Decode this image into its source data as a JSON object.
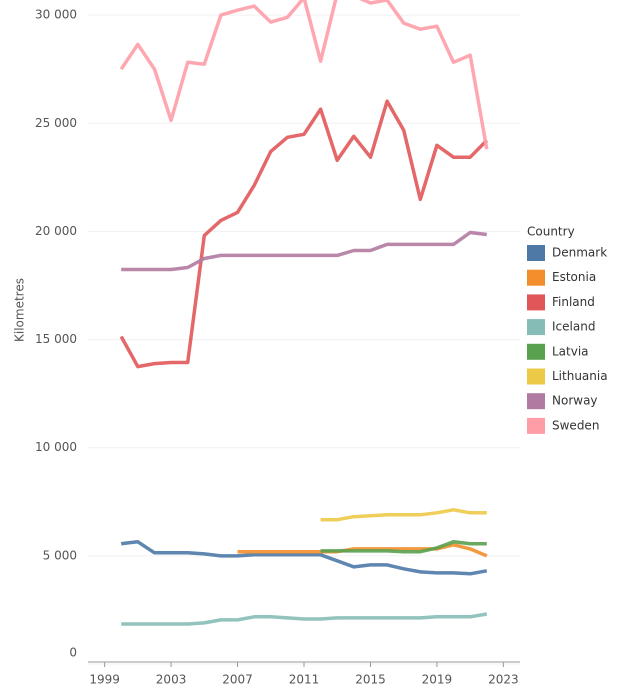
{
  "chart_data": {
    "type": "line",
    "y_label": "Kilometres",
    "legend_title": "Country",
    "legend": "right",
    "grid": true,
    "x": [
      2000,
      2001,
      2002,
      2003,
      2004,
      2005,
      2006,
      2007,
      2008,
      2009,
      2010,
      2011,
      2012,
      2013,
      2014,
      2015,
      2016,
      2017,
      2018,
      2019,
      2020,
      2021,
      2022
    ],
    "xlim": [
      1998,
      2024
    ],
    "xticks": [
      1999,
      2003,
      2007,
      2011,
      2015,
      2019,
      2023
    ],
    "ylim": [
      0,
      30700
    ],
    "yticks": [
      0,
      {
        "value": 5000,
        "label": "5 000"
      },
      {
        "value": 10000,
        "label": "10 000"
      },
      {
        "value": 15000,
        "label": "15 000"
      },
      {
        "value": 20000,
        "label": "20 000"
      },
      {
        "value": 25000,
        "label": "25 000"
      },
      {
        "value": 30000,
        "label": "30 000"
      }
    ],
    "series": [
      {
        "name": "Denmark",
        "color": "#4e79a7",
        "values": [
          5560,
          5650,
          5140,
          5140,
          5140,
          5090,
          5000,
          5000,
          5050,
          5050,
          5050,
          5050,
          5050,
          4770,
          4490,
          4580,
          4580,
          4400,
          4260,
          4210,
          4210,
          4170,
          4310
        ]
      },
      {
        "name": "Estonia",
        "color": "#f28e2b",
        "values": [
          null,
          null,
          null,
          null,
          null,
          null,
          null,
          5190,
          5190,
          5190,
          5190,
          5190,
          5190,
          5190,
          5320,
          5320,
          5320,
          5320,
          5320,
          5320,
          5510,
          5320,
          5000
        ]
      },
      {
        "name": "Finland",
        "color": "#e15759",
        "values": [
          15140,
          13750,
          13890,
          13940,
          13940,
          19810,
          20510,
          20880,
          22130,
          23700,
          24350,
          24490,
          25650,
          23290,
          24400,
          23430,
          26020,
          24680,
          21480,
          23980,
          23430,
          23430,
          24210
        ]
      },
      {
        "name": "Iceland",
        "color": "#86bcb6",
        "values": [
          1850,
          1850,
          1850,
          1850,
          1850,
          1900,
          2040,
          2040,
          2180,
          2180,
          2130,
          2080,
          2080,
          2130,
          2130,
          2130,
          2130,
          2130,
          2130,
          2180,
          2180,
          2180,
          2310
        ]
      },
      {
        "name": "Latvia",
        "color": "#59a14f",
        "values": [
          null,
          null,
          null,
          null,
          null,
          null,
          null,
          null,
          null,
          null,
          null,
          null,
          5230,
          5230,
          5230,
          5230,
          5230,
          5190,
          5190,
          5370,
          5650,
          5560,
          5560
        ]
      },
      {
        "name": "Lithuania",
        "color": "#edc948",
        "values": [
          null,
          null,
          null,
          null,
          null,
          null,
          null,
          null,
          null,
          null,
          null,
          null,
          6670,
          6670,
          6810,
          6850,
          6900,
          6900,
          6900,
          6990,
          7130,
          6990,
          6990
        ]
      },
      {
        "name": "Norway",
        "color": "#b07aa1",
        "values": [
          18240,
          18240,
          18240,
          18240,
          18330,
          18750,
          18890,
          18890,
          18890,
          18890,
          18890,
          18890,
          18890,
          18890,
          19120,
          19120,
          19400,
          19400,
          19400,
          19400,
          19400,
          19950,
          19860
        ]
      },
      {
        "name": "Sweden",
        "color": "#ff9da7",
        "values": [
          27500,
          28650,
          27500,
          25140,
          27820,
          27730,
          30000,
          30230,
          30420,
          29680,
          29900,
          30800,
          27870,
          31000,
          30900,
          30560,
          30700,
          29630,
          29350,
          29490,
          27820,
          28150,
          23800
        ]
      }
    ]
  }
}
